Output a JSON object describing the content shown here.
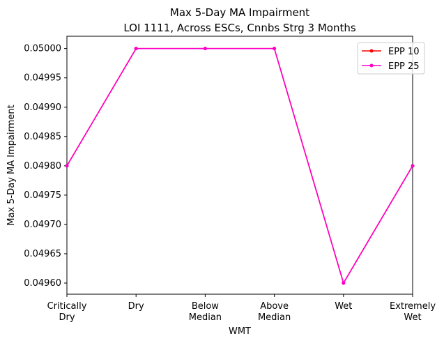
{
  "chart_data": {
    "type": "line",
    "title": "Max 5-Day MA Impairment",
    "subtitle": "LOI 1111, Across ESCs, Cnnbs Strg 3 Months",
    "x_label": "WMT",
    "y_label": "Max 5-Day MA Impairment",
    "categories": [
      "Critically\nDry",
      "Dry",
      "Below\nMedian",
      "Above\nMedian",
      "Wet",
      "Extremely\nWet"
    ],
    "series": [
      {
        "name": "EPP 10",
        "color": "#ff0000",
        "values": [
          0.0498,
          0.05,
          0.05,
          0.05,
          0.0496,
          0.0498
        ]
      },
      {
        "name": "EPP 25",
        "color": "#ff00cc",
        "values": [
          0.0498,
          0.05,
          0.05,
          0.05,
          0.0496,
          0.0498
        ]
      }
    ],
    "ylim": [
      0.049581,
      0.050021
    ],
    "yticks": [
      {
        "value": 0.0496,
        "label": "0.04960"
      },
      {
        "value": 0.04965,
        "label": "0.04965"
      },
      {
        "value": 0.0497,
        "label": "0.04970"
      },
      {
        "value": 0.04975,
        "label": "0.04975"
      },
      {
        "value": 0.0498,
        "label": "0.04980"
      },
      {
        "value": 0.04985,
        "label": "0.04985"
      },
      {
        "value": 0.0499,
        "label": "0.04990"
      },
      {
        "value": 0.04995,
        "label": "0.04995"
      },
      {
        "value": 0.05,
        "label": "0.05000"
      }
    ],
    "grid": false,
    "legend": "upper right"
  }
}
